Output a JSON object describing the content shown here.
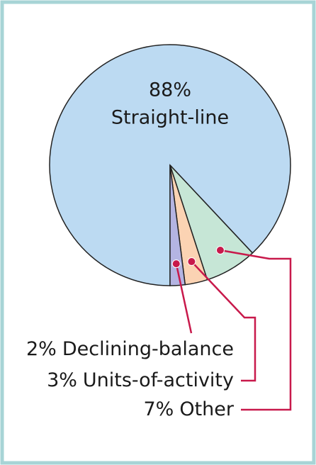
{
  "chart_data": {
    "type": "pie",
    "categories": [
      "Straight-line",
      "Other",
      "Units-of-activity",
      "Declining-balance"
    ],
    "values": [
      88,
      7,
      3,
      2
    ],
    "value_labels": [
      "88%",
      "7%",
      "3%",
      "2%"
    ],
    "colors": [
      "#bcdaf2",
      "#c6e6d6",
      "#fbd3b3",
      "#b4b4e2"
    ]
  }
}
